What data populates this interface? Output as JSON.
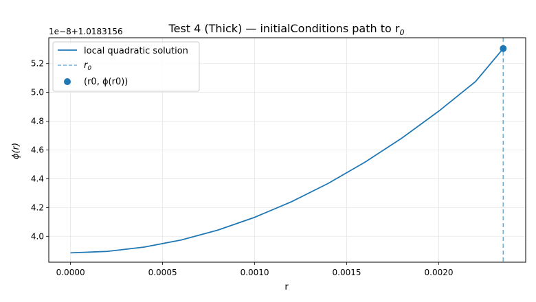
{
  "chart_data": {
    "type": "line",
    "title": "Test 4 (Thick) — initialConditions path to r",
    "title_subscript": "0",
    "xlabel": "r",
    "ylabel": "ϕ(r)",
    "y_offset_label": "1e−8+1.0183156",
    "xlim": [
      -0.000118,
      0.002472
    ],
    "ylim": [
      3.82,
      5.38
    ],
    "x_ticks": [
      0.0,
      0.0005,
      0.001,
      0.0015,
      0.002
    ],
    "x_tick_labels": [
      "0.0000",
      "0.0005",
      "0.0010",
      "0.0015",
      "0.0020"
    ],
    "y_ticks": [
      4.0,
      4.2,
      4.4,
      4.6,
      4.8,
      5.0,
      5.2
    ],
    "y_tick_labels": [
      "4.0",
      "4.2",
      "4.4",
      "4.6",
      "4.8",
      "5.0",
      "5.2"
    ],
    "grid": true,
    "legend_position": "top-left",
    "series": [
      {
        "name": "local quadratic solution",
        "style": "solid",
        "color": "#1f77b4",
        "x": [
          0.0,
          0.0002,
          0.0004,
          0.0006,
          0.0008,
          0.001,
          0.0012,
          0.0014,
          0.0016,
          0.0018,
          0.002,
          0.0022,
          0.00235
        ],
        "y": [
          3.885,
          3.895,
          3.925,
          3.974,
          4.043,
          4.132,
          4.24,
          4.368,
          4.516,
          4.683,
          4.87,
          5.076,
          5.305
        ]
      }
    ],
    "r0": {
      "x": 0.00235,
      "y": 5.305,
      "line_label": "r",
      "line_label_sub": "0",
      "line_color": "#1f77b4",
      "point_label": "(r0, ϕ(r0))",
      "point_color": "#1f77b4"
    }
  }
}
